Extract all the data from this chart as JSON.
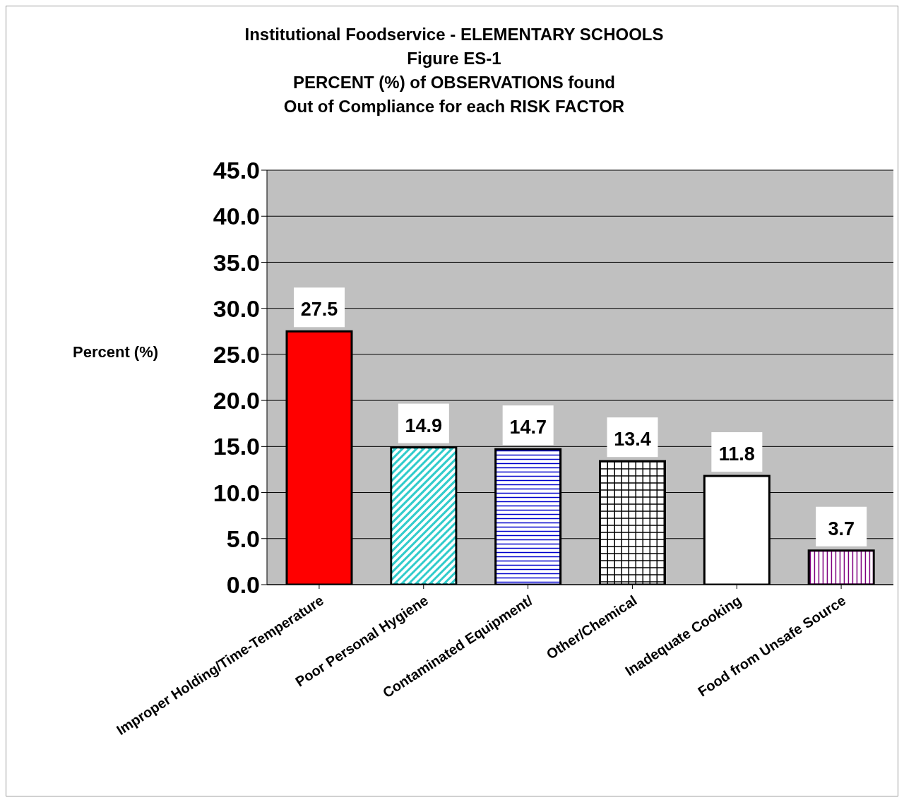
{
  "chart_data": {
    "type": "bar",
    "title": "Institutional Foodservice - ELEMENTARY SCHOOLS\nFigure ES-1\nPERCENT (%) of OBSERVATIONS found\nOut of Compliance for each RISK FACTOR",
    "ylabel": "Percent (%)",
    "categories": [
      "Improper Holding/Time-Temperature",
      "Poor Personal Hygiene",
      "Contaminated Equipment/",
      "Other/Chemical",
      "Inadequate Cooking",
      "Food from Unsafe Source"
    ],
    "values": [
      27.5,
      14.9,
      14.7,
      13.4,
      11.8,
      3.7
    ],
    "colors": [
      "#ff0000",
      "#33cccc",
      "#0000cc",
      "#000000",
      "#ffffff",
      "#800080"
    ],
    "ylim": [
      0,
      45
    ],
    "yticks": [
      {
        "value": 0,
        "label": "0.0"
      },
      {
        "value": 5,
        "label": "5.0"
      },
      {
        "value": 10,
        "label": "10.0"
      },
      {
        "value": 15,
        "label": "15.0"
      },
      {
        "value": 20,
        "label": "20.0"
      },
      {
        "value": 25,
        "label": "25.0"
      },
      {
        "value": 30,
        "label": "30.0"
      },
      {
        "value": 35,
        "label": "35.0"
      },
      {
        "value": 40,
        "label": "40.0"
      },
      {
        "value": 45,
        "label": "45.0"
      }
    ],
    "grid": "y",
    "data_labels": true,
    "legend": false
  }
}
